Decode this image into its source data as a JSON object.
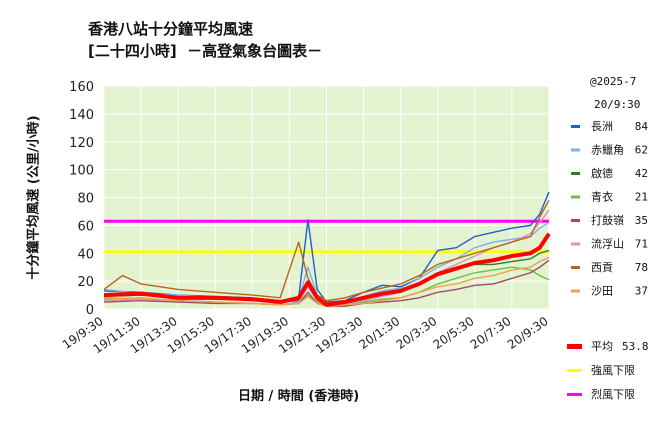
{
  "header": {
    "title_line1": "香港八站十分鐘平均風速",
    "title_line2": "[二十四小時]  －高登氣象台圖表－",
    "timestamp_line1": "@2025-7",
    "timestamp_line2": "20/9:30"
  },
  "colors": {
    "plot_bg": "#e3f2cf",
    "grid": "#ffffff",
    "strong_wind": "#ffff00",
    "gale": "#ff00ff",
    "average": "#ff0000"
  },
  "chart_data": {
    "type": "line",
    "title": "香港八站十分鐘平均風速 [二十四小時] －高登氣象台圖表－",
    "xlabel": "日期 / 時間 (香港時)",
    "ylabel": "十分鐘平均風速 (公里/小時)",
    "ylim": [
      0,
      160
    ],
    "yticks": [
      "0",
      "20",
      "40",
      "60",
      "80",
      "100",
      "120",
      "140",
      "160"
    ],
    "x_tick_labels": [
      "19/9:30",
      "19/11:30",
      "19/13:30",
      "19/15:30",
      "19/17:30",
      "19/19:30",
      "19/21:30",
      "19/23:30",
      "20/1:30",
      "20/3:30",
      "20/5:30",
      "20/7:30",
      "20/9:30"
    ],
    "x_hours": [
      0,
      2,
      4,
      6,
      8,
      10,
      12,
      14,
      16,
      18,
      20,
      22,
      24
    ],
    "grid": true,
    "legend_position": "right",
    "hlines": [
      {
        "name": "強風下限",
        "value": 41,
        "color": "#ffff00"
      },
      {
        "name": "烈風下限",
        "value": 63,
        "color": "#ff00ff"
      }
    ],
    "series": [
      {
        "name": "長洲",
        "latest": "84",
        "color": "#1f5fc8",
        "x": [
          0,
          2,
          4,
          6,
          8,
          9.5,
          10.5,
          11,
          11.5,
          12,
          13,
          14,
          15,
          16,
          17,
          18,
          19,
          20,
          21,
          22,
          23,
          23.5,
          24
        ],
        "y": [
          13,
          12,
          10,
          9,
          8,
          6,
          8,
          64,
          14,
          5,
          6,
          12,
          17,
          16,
          22,
          42,
          44,
          52,
          55,
          58,
          60,
          68,
          84
        ]
      },
      {
        "name": "赤鱲角",
        "latest": "62",
        "color": "#7ab0f0",
        "x": [
          0,
          2,
          4,
          6,
          8,
          9.5,
          10.5,
          11,
          11.5,
          12,
          13,
          14,
          15,
          16,
          17,
          18,
          19,
          20,
          21,
          22,
          23,
          23.5,
          24
        ],
        "y": [
          14,
          11,
          10,
          8,
          7,
          5,
          7,
          30,
          10,
          4,
          5,
          9,
          13,
          15,
          22,
          30,
          36,
          44,
          48,
          50,
          52,
          58,
          62
        ]
      },
      {
        "name": "啟德",
        "latest": "42",
        "color": "#2e7d1e",
        "x": [
          0,
          2,
          4,
          6,
          8,
          9.5,
          10.5,
          11,
          11.5,
          12,
          13,
          14,
          15,
          16,
          17,
          18,
          19,
          20,
          21,
          22,
          23,
          23.5,
          24
        ],
        "y": [
          9,
          10,
          8,
          8,
          6,
          5,
          6,
          20,
          8,
          3,
          4,
          7,
          10,
          12,
          18,
          26,
          30,
          32,
          32,
          34,
          36,
          40,
          42
        ]
      },
      {
        "name": "青衣",
        "latest": "21",
        "color": "#6ac04a",
        "x": [
          0,
          2,
          4,
          6,
          8,
          9.5,
          10.5,
          11,
          11.5,
          12,
          13,
          14,
          15,
          16,
          17,
          18,
          19,
          20,
          21,
          22,
          23,
          23.5,
          24
        ],
        "y": [
          8,
          7,
          6,
          5,
          4,
          3,
          4,
          10,
          5,
          2,
          3,
          5,
          7,
          8,
          12,
          18,
          22,
          26,
          28,
          30,
          28,
          24,
          21
        ]
      },
      {
        "name": "打鼓嶺",
        "latest": "35",
        "color": "#a04a6a",
        "x": [
          0,
          2,
          4,
          6,
          8,
          9.5,
          10.5,
          11,
          11.5,
          12,
          13,
          14,
          15,
          16,
          17,
          18,
          19,
          20,
          21,
          22,
          23,
          23.5,
          24
        ],
        "y": [
          5,
          6,
          5,
          4,
          4,
          3,
          4,
          12,
          4,
          2,
          2,
          4,
          5,
          6,
          8,
          12,
          14,
          17,
          18,
          22,
          26,
          30,
          35
        ]
      },
      {
        "name": "流浮山",
        "latest": "71",
        "color": "#d890c8",
        "x": [
          0,
          2,
          4,
          6,
          8,
          9.5,
          10.5,
          11,
          11.5,
          12,
          13,
          14,
          15,
          16,
          17,
          18,
          19,
          20,
          21,
          22,
          23,
          23.5,
          24
        ],
        "y": [
          6,
          7,
          6,
          5,
          4,
          3,
          5,
          16,
          6,
          3,
          4,
          6,
          9,
          12,
          18,
          26,
          32,
          38,
          44,
          48,
          54,
          62,
          71
        ]
      },
      {
        "name": "西貢",
        "latest": "78",
        "color": "#b8661a",
        "x": [
          0,
          1,
          2,
          4,
          6,
          8,
          9.5,
          10.5,
          11,
          11.5,
          12,
          13,
          14,
          15,
          16,
          17,
          18,
          19,
          20,
          21,
          22,
          23,
          23.5,
          24
        ],
        "y": [
          14,
          24,
          18,
          14,
          12,
          10,
          8,
          48,
          22,
          10,
          6,
          8,
          12,
          15,
          18,
          24,
          32,
          36,
          40,
          44,
          48,
          52,
          66,
          78
        ]
      },
      {
        "name": "沙田",
        "latest": "37",
        "color": "#f0a050",
        "x": [
          0,
          2,
          4,
          6,
          8,
          9.5,
          10.5,
          11,
          11.5,
          12,
          13,
          14,
          15,
          16,
          17,
          18,
          19,
          20,
          21,
          22,
          23,
          23.5,
          24
        ],
        "y": [
          7,
          8,
          6,
          5,
          4,
          3,
          4,
          9,
          4,
          2,
          3,
          4,
          6,
          8,
          12,
          16,
          18,
          22,
          24,
          28,
          30,
          34,
          37
        ]
      },
      {
        "name": "平均",
        "latest": "53.8",
        "color": "#ff0000",
        "x": [
          0,
          2,
          4,
          6,
          8,
          9.5,
          10.5,
          11,
          11.5,
          12,
          13,
          14,
          15,
          16,
          17,
          18,
          19,
          20,
          21,
          22,
          23,
          23.5,
          24
        ],
        "y": [
          10,
          11,
          8,
          8,
          7,
          5,
          8,
          19,
          8,
          3,
          5,
          8,
          11,
          13,
          18,
          25,
          29,
          33,
          35,
          38,
          40,
          44,
          54
        ]
      }
    ]
  }
}
